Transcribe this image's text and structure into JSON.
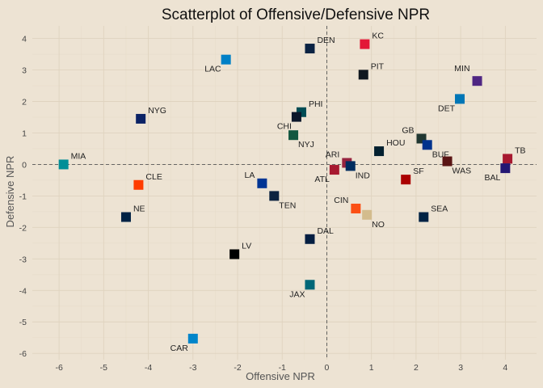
{
  "chart_data": {
    "type": "scatter",
    "title": "Scatterplot of Offensive/Defensive NPR",
    "xlabel": "Offensive NPR",
    "ylabel": "Defensive NPR",
    "xlim": [
      -6.6,
      4.7
    ],
    "ylim": [
      -6.2,
      4.4
    ],
    "xticks": [
      -6,
      -5,
      -4,
      -3,
      -2,
      -1,
      0,
      1,
      2,
      3,
      4
    ],
    "yticks": [
      -6,
      -5,
      -4,
      -3,
      -2,
      -1,
      0,
      1,
      2,
      3,
      4
    ],
    "grid": true,
    "reference_lines": {
      "x": 0,
      "y": 0,
      "style": "dashed"
    },
    "points": [
      {
        "team": "DEN",
        "x": -0.38,
        "y": 3.68,
        "color": "#0b2343",
        "label_pos": "right"
      },
      {
        "team": "KC",
        "x": 0.85,
        "y": 3.82,
        "color": "#e31837",
        "label_pos": "right"
      },
      {
        "team": "LAC",
        "x": -2.26,
        "y": 3.33,
        "color": "#0080c6",
        "label_pos": "below-left"
      },
      {
        "team": "PIT",
        "x": 0.82,
        "y": 2.85,
        "color": "#101820",
        "label_pos": "right"
      },
      {
        "team": "MIN",
        "x": 3.37,
        "y": 2.65,
        "color": "#4f2683",
        "label_pos": "left-up"
      },
      {
        "team": "DET",
        "x": 2.98,
        "y": 2.08,
        "color": "#0076b6",
        "label_pos": "below-left"
      },
      {
        "team": "NYG",
        "x": -4.17,
        "y": 1.45,
        "color": "#0b2265",
        "label_pos": "right"
      },
      {
        "team": "PHI",
        "x": -0.57,
        "y": 1.66,
        "color": "#004c54",
        "label_pos": "right"
      },
      {
        "team": "CHI",
        "x": -0.68,
        "y": 1.51,
        "color": "#0b162a",
        "label_pos": "below-left"
      },
      {
        "team": "NYJ",
        "x": -0.75,
        "y": 0.93,
        "color": "#125740",
        "label_pos": "below-right"
      },
      {
        "team": "GB",
        "x": 2.12,
        "y": 0.82,
        "color": "#203731",
        "label_pos": "left"
      },
      {
        "team": "HOU",
        "x": 1.17,
        "y": 0.42,
        "color": "#03202f",
        "label_pos": "right"
      },
      {
        "team": "BUF",
        "x": 2.25,
        "y": 0.62,
        "color": "#00338d",
        "label_pos": "below-right"
      },
      {
        "team": "TB",
        "x": 4.05,
        "y": 0.18,
        "color": "#a71930",
        "label_pos": "right"
      },
      {
        "team": "WAS",
        "x": 2.7,
        "y": 0.1,
        "color": "#5a1414",
        "label_pos": "below-right"
      },
      {
        "team": "BAL",
        "x": 4.0,
        "y": -0.12,
        "color": "#241773",
        "label_pos": "below-left"
      },
      {
        "team": "MIA",
        "x": -5.9,
        "y": 0.0,
        "color": "#008e97",
        "label_pos": "right"
      },
      {
        "team": "ARI",
        "x": 0.45,
        "y": 0.05,
        "color": "#97233f",
        "label_pos": "left"
      },
      {
        "team": "ATL",
        "x": 0.17,
        "y": -0.17,
        "color": "#a71930",
        "label_pos": "below-left"
      },
      {
        "team": "IND",
        "x": 0.53,
        "y": -0.05,
        "color": "#002c5f",
        "label_pos": "below-right"
      },
      {
        "team": "SF",
        "x": 1.77,
        "y": -0.48,
        "color": "#aa0000",
        "label_pos": "right"
      },
      {
        "team": "CLE",
        "x": -4.22,
        "y": -0.65,
        "color": "#ff3c00",
        "label_pos": "right"
      },
      {
        "team": "LA",
        "x": -1.45,
        "y": -0.6,
        "color": "#003594",
        "label_pos": "left"
      },
      {
        "team": "TEN",
        "x": -1.18,
        "y": -1.0,
        "color": "#0c2340",
        "label_pos": "below-right"
      },
      {
        "team": "CIN",
        "x": 0.65,
        "y": -1.4,
        "color": "#fb4f14",
        "label_pos": "left"
      },
      {
        "team": "NO",
        "x": 0.9,
        "y": -1.6,
        "color": "#d3bc8d",
        "label_pos": "below-right"
      },
      {
        "team": "NE",
        "x": -4.5,
        "y": -1.67,
        "color": "#002244",
        "label_pos": "right"
      },
      {
        "team": "SEA",
        "x": 2.17,
        "y": -1.67,
        "color": "#002244",
        "label_pos": "right"
      },
      {
        "team": "DAL",
        "x": -0.38,
        "y": -2.37,
        "color": "#041e42",
        "label_pos": "right"
      },
      {
        "team": "LV",
        "x": -2.07,
        "y": -2.85,
        "color": "#000000",
        "label_pos": "right"
      },
      {
        "team": "JAX",
        "x": -0.38,
        "y": -3.82,
        "color": "#006778",
        "label_pos": "below-left"
      },
      {
        "team": "CAR",
        "x": -3.0,
        "y": -5.53,
        "color": "#0085ca",
        "label_pos": "below-left"
      }
    ]
  }
}
